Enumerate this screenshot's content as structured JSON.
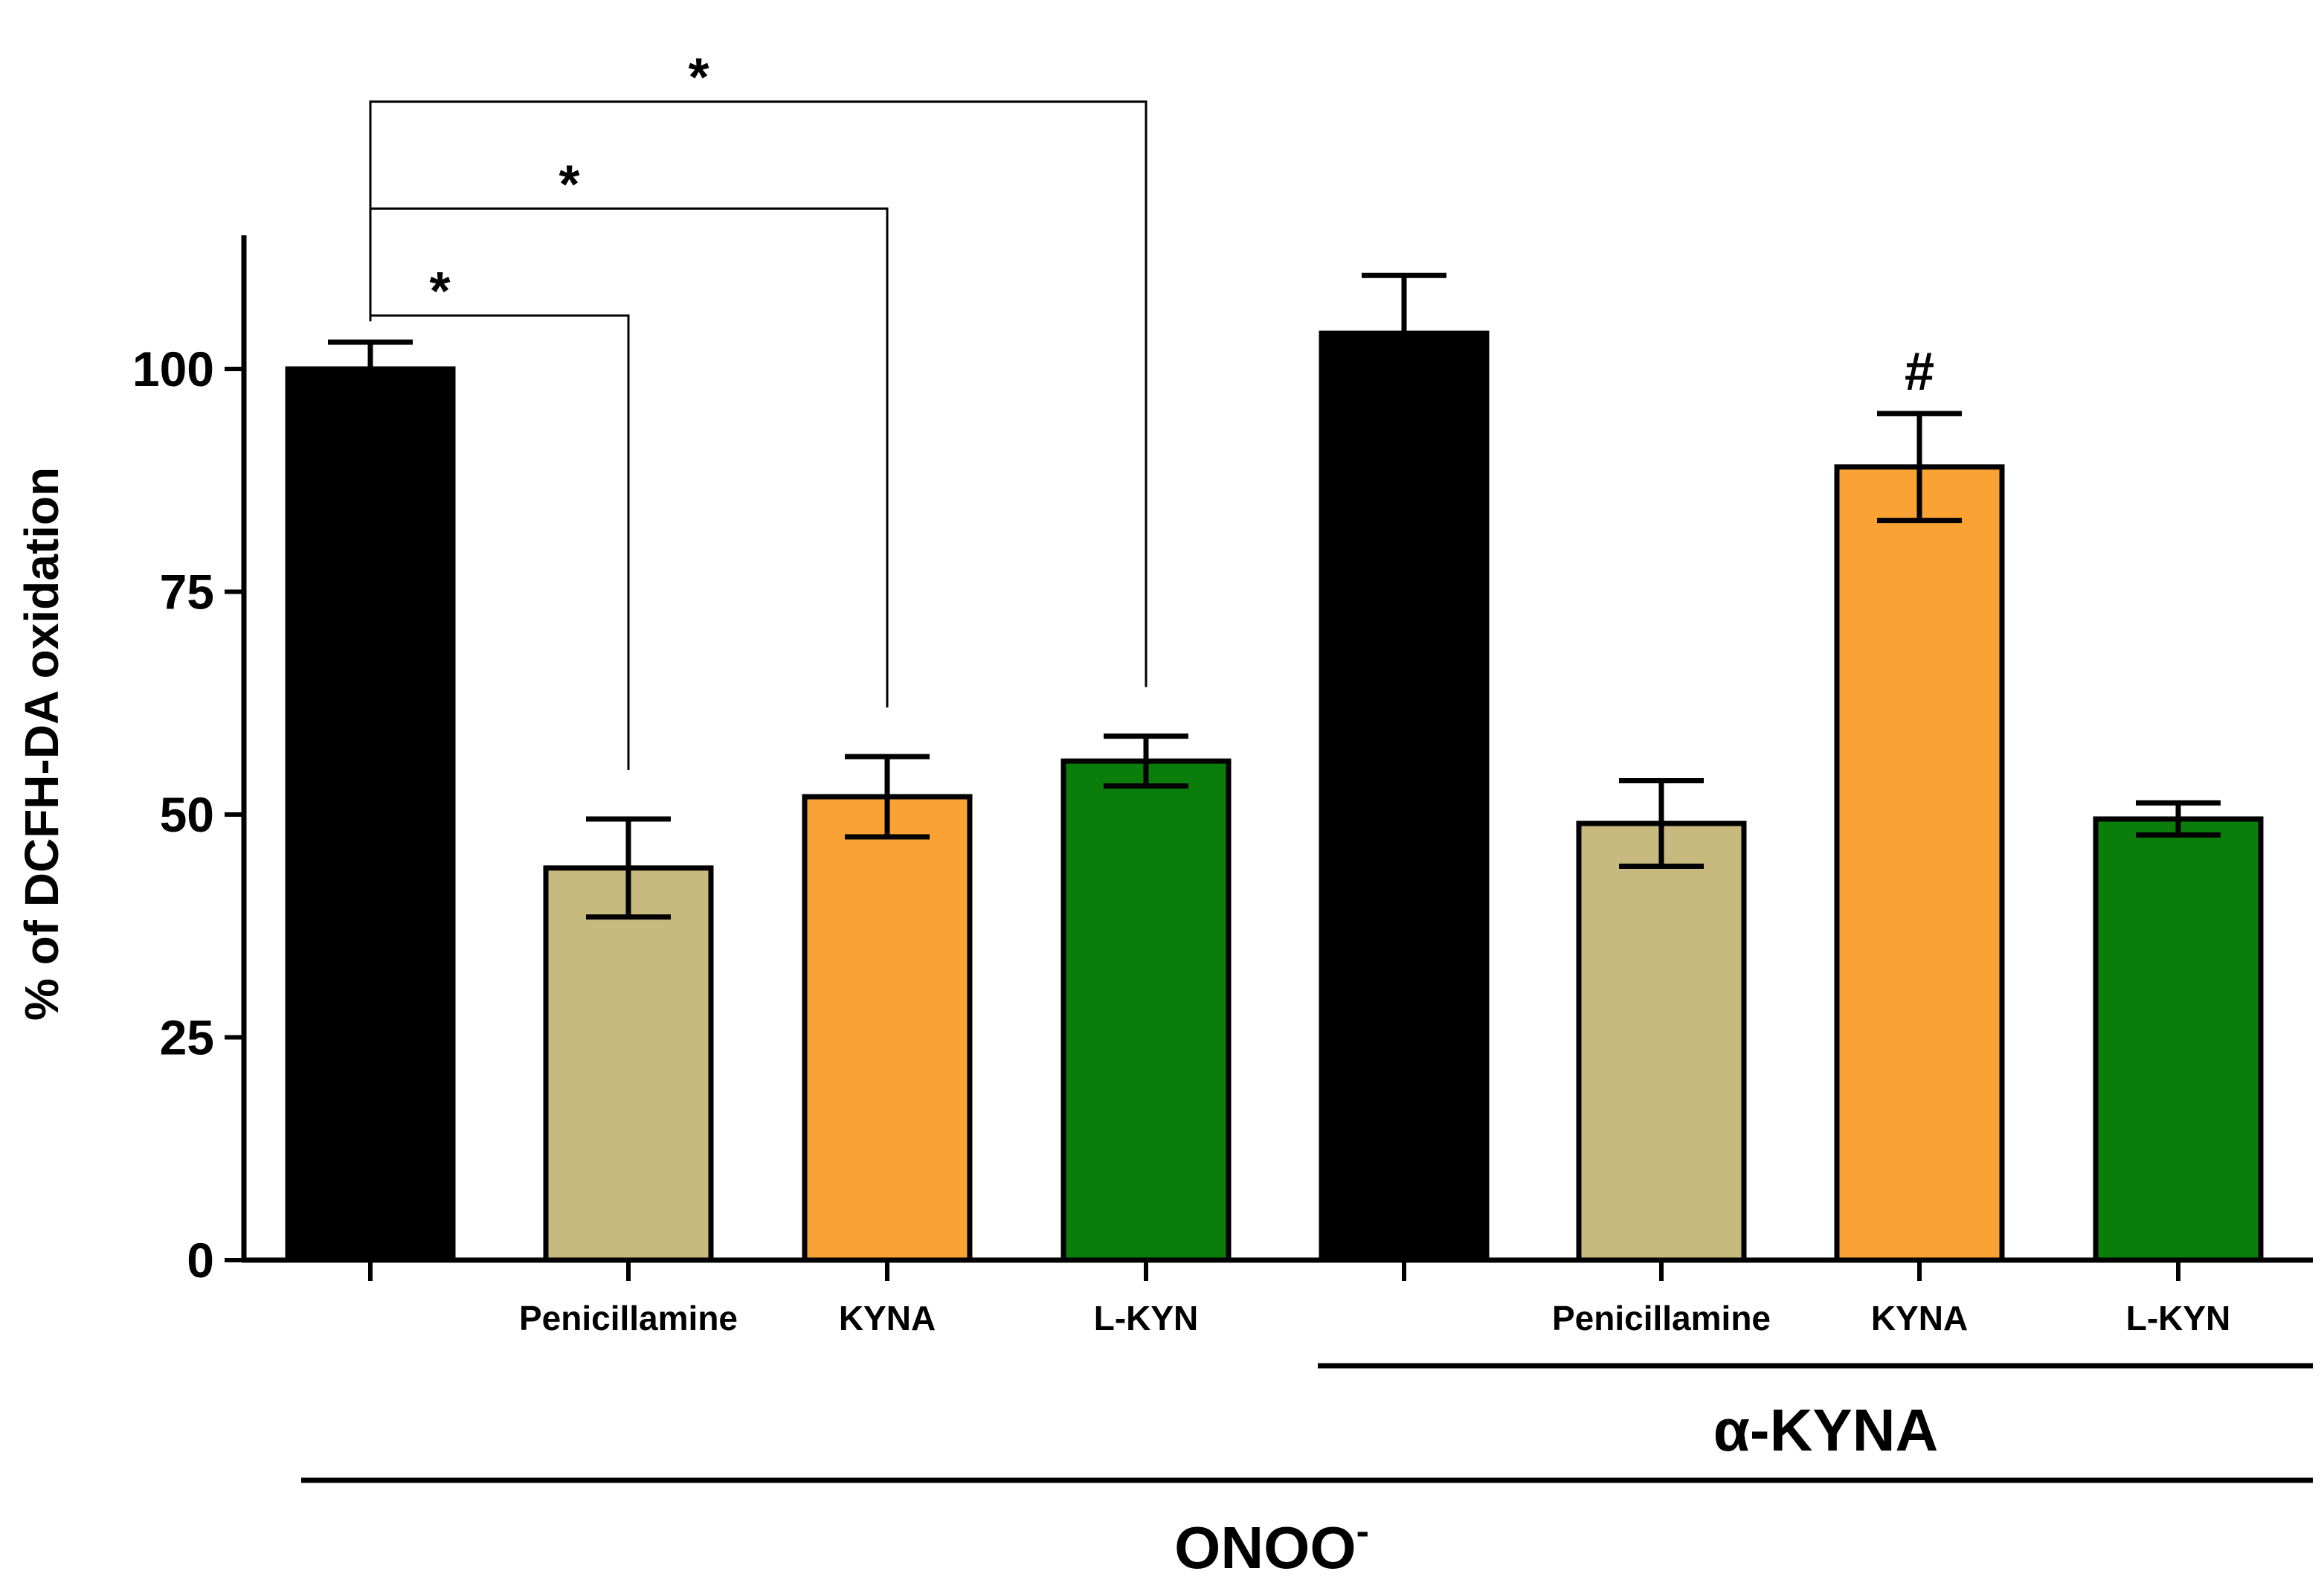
{
  "chart_data": {
    "type": "bar",
    "title": "",
    "xlabel": "",
    "ylabel": "% of DCFH-DA oxidation",
    "ylim": [
      0,
      115
    ],
    "yticks": [
      0,
      25,
      50,
      75,
      100
    ],
    "grid": false,
    "bars": [
      {
        "label": "",
        "value": 100,
        "error": 3,
        "color": "#000000"
      },
      {
        "label": "Penicillamine",
        "value": 44,
        "error": 5.5,
        "color": "#c8b97e"
      },
      {
        "label": "KYNA",
        "value": 52,
        "error": 4.5,
        "color": "#fba234"
      },
      {
        "label": "L-KYN",
        "value": 56,
        "error": 2.8,
        "color": "#0a7d0a"
      },
      {
        "label": "",
        "value": 104,
        "error": 6.5,
        "color": "#000000"
      },
      {
        "label": "Penicillamine",
        "value": 49,
        "error": 4.8,
        "color": "#c8b97e"
      },
      {
        "label": "KYNA",
        "value": 89,
        "error": 6,
        "color": "#fba234"
      },
      {
        "label": "L-KYN",
        "value": 49.5,
        "error": 1.8,
        "color": "#0a7d0a"
      }
    ],
    "significance": [
      {
        "from": 0,
        "to": 1,
        "level": 106,
        "symbol": "*"
      },
      {
        "from": 0,
        "to": 2,
        "level": 118,
        "symbol": "*"
      },
      {
        "from": 0,
        "to": 3,
        "level": 130,
        "symbol": "*"
      }
    ],
    "bar_annotations": [
      {
        "bar": 6,
        "symbol": "#"
      }
    ],
    "groups": [
      {
        "label": "α-KYNA",
        "from_bar": 4,
        "to_bar": 7
      },
      {
        "label": "ONOO",
        "superscript": "-",
        "from_bar": 0,
        "to_bar": 7
      }
    ]
  }
}
